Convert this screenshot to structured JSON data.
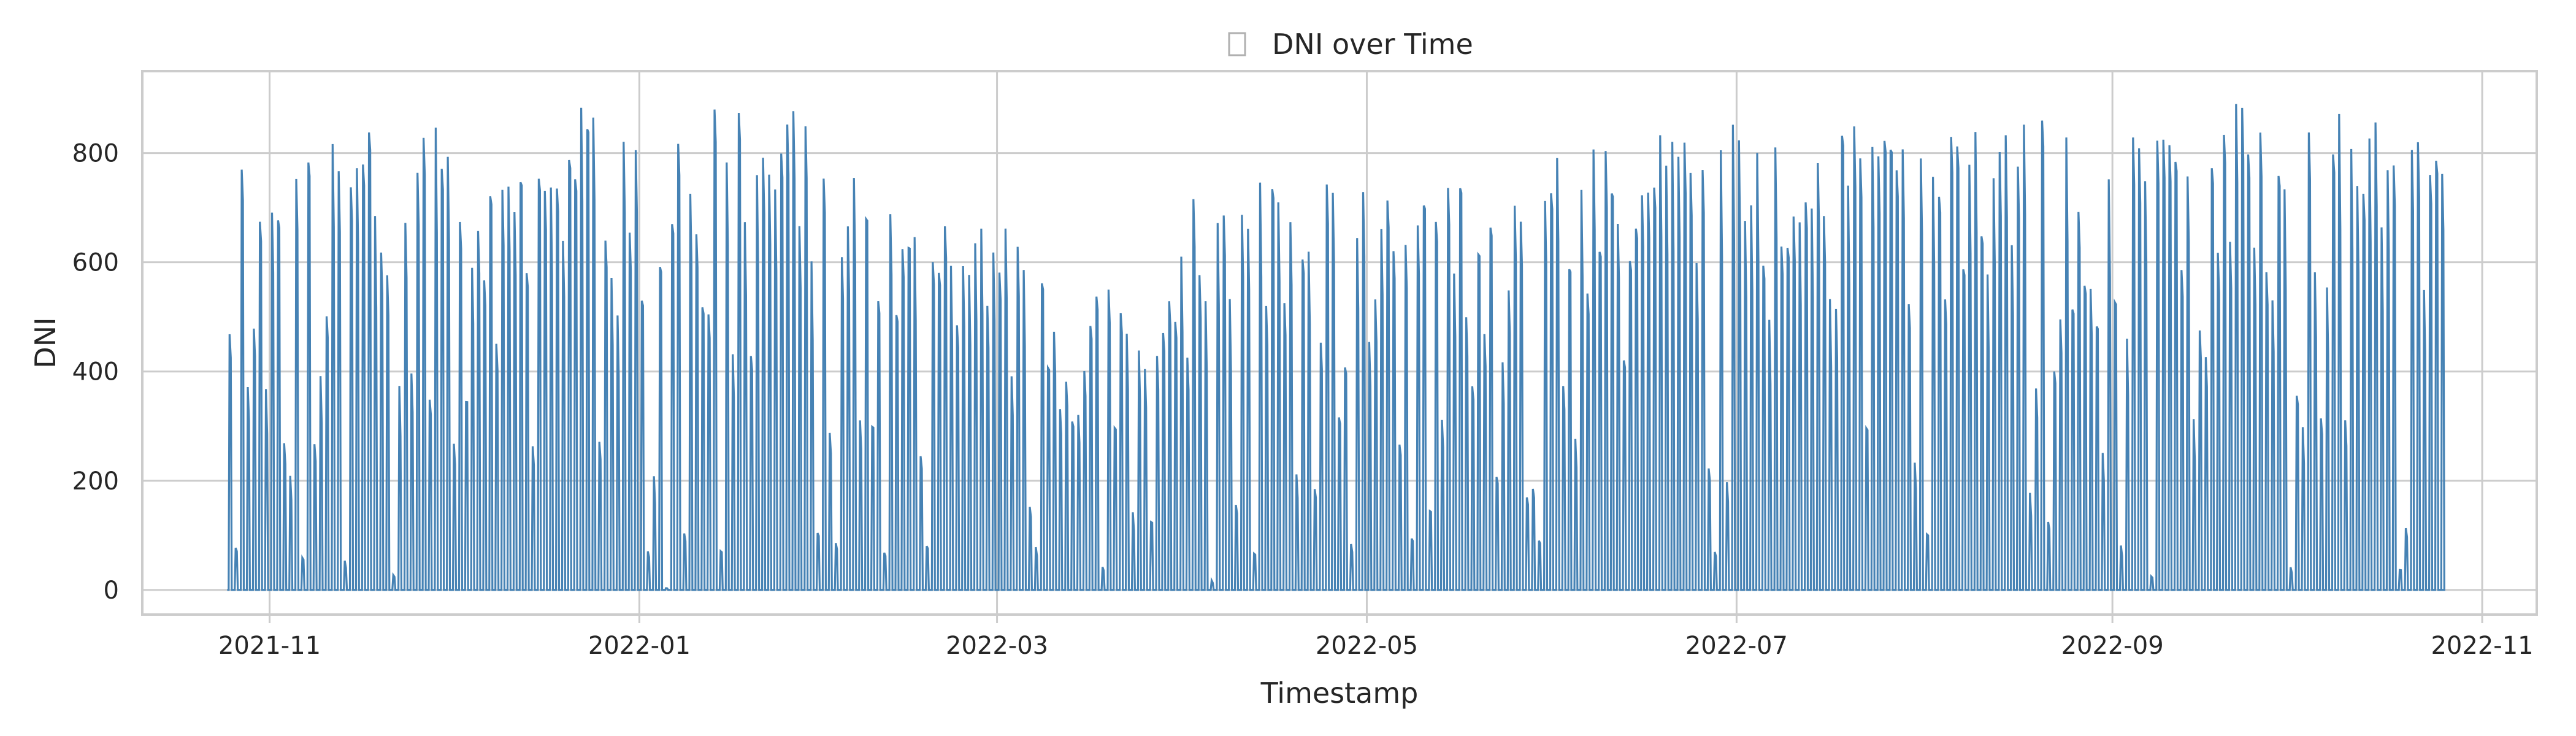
{
  "chart_data": {
    "type": "line",
    "title": "DNI over Time",
    "title_icon": "missing-glyph-box",
    "xlabel": "Timestamp",
    "ylabel": "DNI",
    "x_range": [
      "2021-10-11",
      "2022-11-10"
    ],
    "ylim": [
      -45,
      950
    ],
    "x_ticks": [
      {
        "date": "2021-11-01",
        "label": "2021-11"
      },
      {
        "date": "2022-01-01",
        "label": "2022-01"
      },
      {
        "date": "2022-03-01",
        "label": "2022-03"
      },
      {
        "date": "2022-05-01",
        "label": "2022-05"
      },
      {
        "date": "2022-07-01",
        "label": "2022-07"
      },
      {
        "date": "2022-09-01",
        "label": "2022-09"
      },
      {
        "date": "2022-11-01",
        "label": "2022-11"
      }
    ],
    "y_ticks": [
      0,
      200,
      400,
      600,
      800
    ],
    "grid": true,
    "legend": "none",
    "series": [
      {
        "color": "#4682b4",
        "x": [
          "2021-10-25",
          "2021-10-28",
          "2021-11-01",
          "2021-11-05",
          "2021-11-09",
          "2021-11-13",
          "2021-11-17",
          "2021-11-21",
          "2021-11-25",
          "2021-11-29",
          "2021-12-03",
          "2021-12-07",
          "2021-12-11",
          "2021-12-15",
          "2021-12-19",
          "2021-12-23",
          "2021-12-27",
          "2021-12-31",
          "2022-01-04",
          "2022-01-08",
          "2022-01-12",
          "2022-01-16",
          "2022-01-20",
          "2022-01-24",
          "2022-01-28",
          "2022-02-01",
          "2022-02-05",
          "2022-02-09",
          "2022-02-13",
          "2022-02-17",
          "2022-02-21",
          "2022-02-25",
          "2022-03-01",
          "2022-03-05",
          "2022-03-09",
          "2022-03-13",
          "2022-03-17",
          "2022-03-21",
          "2022-03-25",
          "2022-03-29",
          "2022-04-02",
          "2022-04-06",
          "2022-04-10",
          "2022-04-14",
          "2022-04-18",
          "2022-04-22",
          "2022-04-26",
          "2022-04-30",
          "2022-05-04",
          "2022-05-08",
          "2022-05-12",
          "2022-05-16",
          "2022-05-20",
          "2022-05-24",
          "2022-05-28",
          "2022-06-01",
          "2022-06-05",
          "2022-06-09",
          "2022-06-13",
          "2022-06-17",
          "2022-06-21",
          "2022-06-25",
          "2022-06-29",
          "2022-07-03",
          "2022-07-07",
          "2022-07-11",
          "2022-07-15",
          "2022-07-19",
          "2022-07-23",
          "2022-07-27",
          "2022-07-31",
          "2022-08-04",
          "2022-08-08",
          "2022-08-12",
          "2022-08-16",
          "2022-08-20",
          "2022-08-24",
          "2022-08-28",
          "2022-09-01",
          "2022-09-05",
          "2022-09-09",
          "2022-09-13",
          "2022-09-17",
          "2022-09-21",
          "2022-09-25",
          "2022-09-29",
          "2022-10-03",
          "2022-10-07",
          "2022-10-11",
          "2022-10-15",
          "2022-10-19",
          "2022-10-23",
          "2022-10-25"
        ],
        "y": [
          730,
          810,
          720,
          830,
          880,
          830,
          900,
          905,
          900,
          840,
          720,
          760,
          780,
          865,
          840,
          900,
          905,
          880,
          650,
          880,
          905,
          900,
          870,
          900,
          905,
          840,
          880,
          690,
          730,
          680,
          680,
          650,
          730,
          680,
          620,
          330,
          590,
          540,
          420,
          550,
          720,
          740,
          760,
          760,
          750,
          780,
          730,
          740,
          720,
          700,
          710,
          770,
          680,
          750,
          780,
          800,
          850,
          850,
          850,
          850,
          860,
          860,
          870,
          860,
          830,
          790,
          850,
          860,
          870,
          860,
          860,
          860,
          870,
          860,
          870,
          860,
          880,
          600,
          860,
          880,
          860,
          860,
          860,
          900,
          860,
          830,
          850,
          900,
          860,
          880,
          840,
          830,
          810
        ]
      }
    ]
  }
}
